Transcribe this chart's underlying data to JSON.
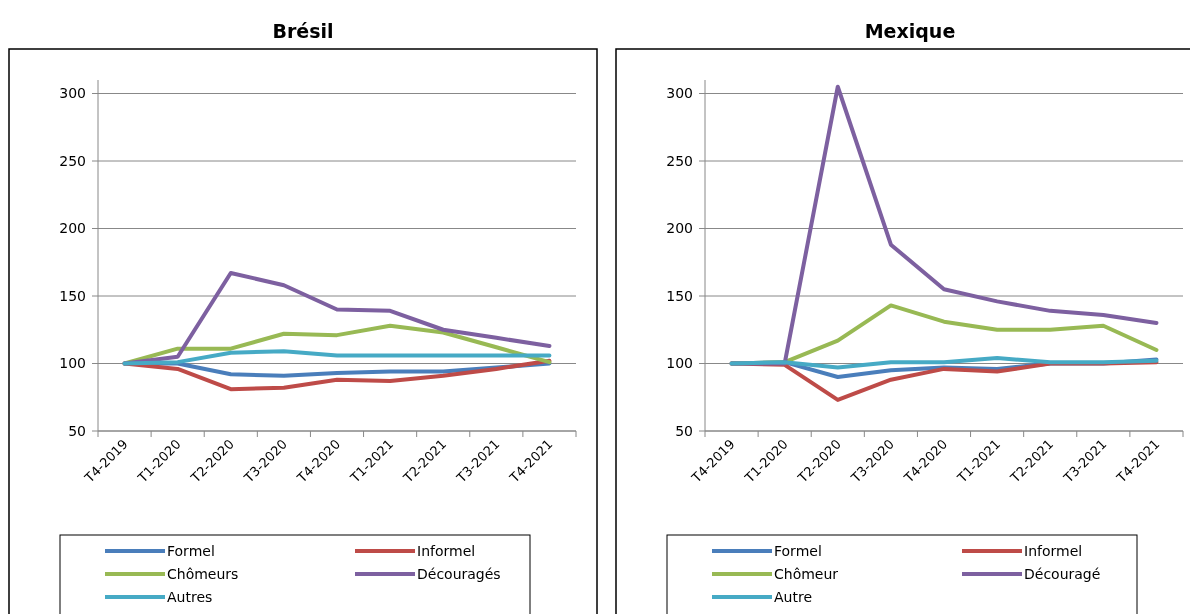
{
  "chart_data": [
    {
      "type": "line",
      "title": "Brésil",
      "categories": [
        "T4-2019",
        "T1-2020",
        "T2-2020",
        "T3-2020",
        "T4-2020",
        "T1-2021",
        "T2-2021",
        "T3-2021",
        "T4-2021"
      ],
      "ylim": [
        50,
        310
      ],
      "yticks": [
        50,
        100,
        150,
        200,
        250,
        300
      ],
      "grid": "y",
      "legend": "bottom",
      "series": [
        {
          "name": "Formel",
          "color": "#4a7ebb",
          "values": [
            100,
            100,
            92,
            91,
            93,
            94,
            94,
            97,
            100
          ]
        },
        {
          "name": "Informel",
          "color": "#be4b48",
          "values": [
            100,
            96,
            81,
            82,
            88,
            87,
            91,
            96,
            102
          ]
        },
        {
          "name": "Chômeurs",
          "color": "#98b954",
          "values": [
            100,
            111,
            111,
            122,
            121,
            128,
            123,
            112,
            101
          ]
        },
        {
          "name": "Découragés",
          "color": "#7d60a0",
          "values": [
            100,
            105,
            167,
            158,
            140,
            139,
            125,
            119,
            113
          ]
        },
        {
          "name": "Autres",
          "color": "#46aac5",
          "values": [
            100,
            101,
            108,
            109,
            106,
            106,
            106,
            106,
            106
          ]
        }
      ]
    },
    {
      "type": "line",
      "title": "Mexique",
      "categories": [
        "T4-2019",
        "T1-2020",
        "T2-2020",
        "T3-2020",
        "T4-2020",
        "T1-2021",
        "T2-2021",
        "T3-2021",
        "T4-2021"
      ],
      "ylim": [
        50,
        310
      ],
      "yticks": [
        50,
        100,
        150,
        200,
        250,
        300
      ],
      "grid": "y",
      "legend": "bottom",
      "series": [
        {
          "name": "Formel",
          "color": "#4a7ebb",
          "values": [
            100,
            101,
            90,
            95,
            97,
            96,
            100,
            100,
            103
          ]
        },
        {
          "name": "Informel",
          "color": "#be4b48",
          "values": [
            100,
            99,
            73,
            88,
            96,
            94,
            100,
            100,
            101
          ]
        },
        {
          "name": "Chômeur",
          "color": "#98b954",
          "values": [
            100,
            101,
            117,
            143,
            131,
            125,
            125,
            128,
            110
          ]
        },
        {
          "name": "Découragé",
          "color": "#7d60a0",
          "values": [
            100,
            100,
            305,
            188,
            155,
            146,
            139,
            136,
            130
          ]
        },
        {
          "name": "Autre",
          "color": "#46aac5",
          "values": [
            100,
            101,
            97,
            101,
            101,
            104,
            101,
            101,
            102
          ]
        }
      ]
    }
  ]
}
